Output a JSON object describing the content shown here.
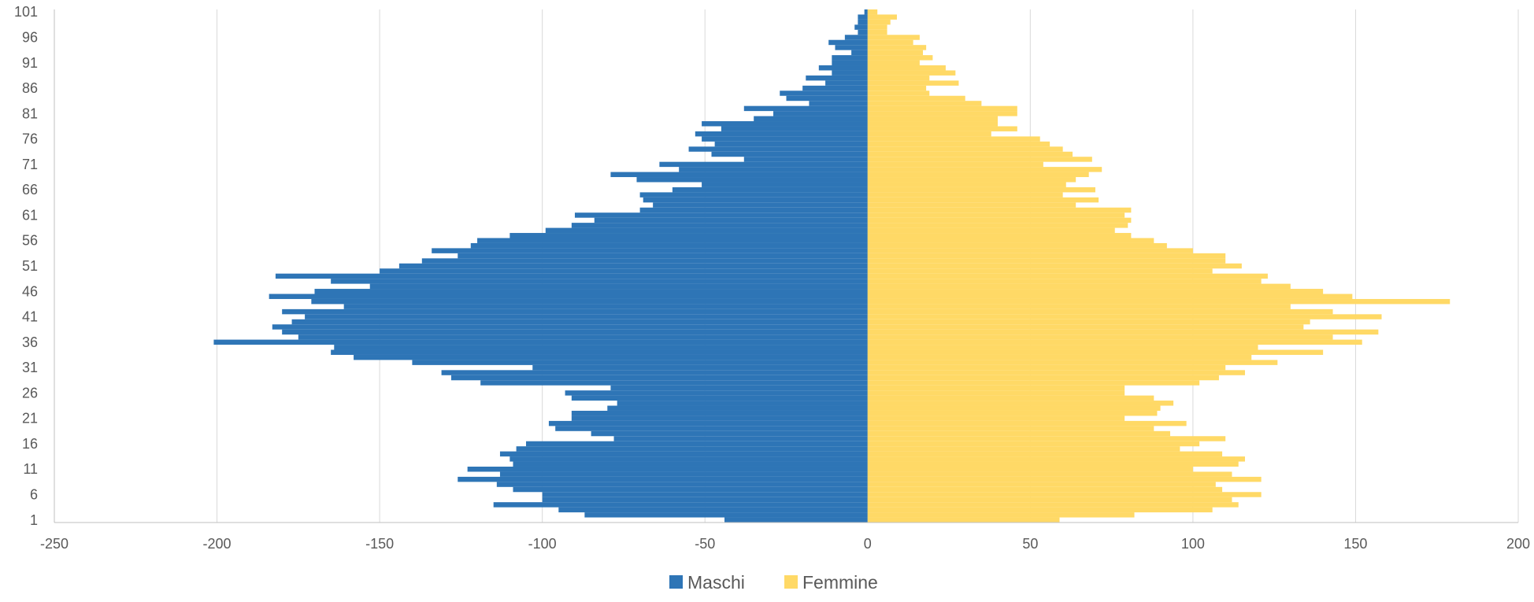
{
  "chart_data": {
    "type": "bar",
    "orientation": "horizontal",
    "title": "",
    "xlabel": "",
    "ylabel": "",
    "xlim": [
      -250,
      200
    ],
    "x_ticks": [
      -250,
      -200,
      -150,
      -100,
      -50,
      0,
      50,
      100,
      150,
      200
    ],
    "x_tick_labels": [
      "-250",
      "-200",
      "-150",
      "-100",
      "-50",
      "0",
      "50",
      "100",
      "150",
      "200"
    ],
    "y_tick_labels": [
      "1",
      "6",
      "11",
      "16",
      "21",
      "26",
      "31",
      "36",
      "41",
      "46",
      "51",
      "56",
      "61",
      "66",
      "71",
      "76",
      "81",
      "86",
      "91",
      "96",
      "101"
    ],
    "grid": "vertical",
    "legend_position": "bottom",
    "categories": [
      1,
      2,
      3,
      4,
      5,
      6,
      7,
      8,
      9,
      10,
      11,
      12,
      13,
      14,
      15,
      16,
      17,
      18,
      19,
      20,
      21,
      22,
      23,
      24,
      25,
      26,
      27,
      28,
      29,
      30,
      31,
      32,
      33,
      34,
      35,
      36,
      37,
      38,
      39,
      40,
      41,
      42,
      43,
      44,
      45,
      46,
      47,
      48,
      49,
      50,
      51,
      52,
      53,
      54,
      55,
      56,
      57,
      58,
      59,
      60,
      61,
      62,
      63,
      64,
      65,
      66,
      67,
      68,
      69,
      70,
      71,
      72,
      73,
      74,
      75,
      76,
      77,
      78,
      79,
      80,
      81,
      82,
      83,
      84,
      85,
      86,
      87,
      88,
      89,
      90,
      91,
      92,
      93,
      94,
      95,
      96,
      97,
      98,
      99,
      100,
      101
    ],
    "series": [
      {
        "name": "Maschi",
        "color": "#2E75B6",
        "values": [
          -44,
          -87,
          -95,
          -115,
          -100,
          -100,
          -109,
          -114,
          -126,
          -113,
          -123,
          -109,
          -110,
          -113,
          -108,
          -105,
          -78,
          -85,
          -96,
          -98,
          -91,
          -91,
          -80,
          -77,
          -91,
          -93,
          -79,
          -119,
          -128,
          -131,
          -103,
          -140,
          -158,
          -165,
          -164,
          -201,
          -175,
          -180,
          -183,
          -177,
          -173,
          -180,
          -161,
          -171,
          -184,
          -170,
          -153,
          -165,
          -182,
          -150,
          -144,
          -137,
          -126,
          -134,
          -122,
          -120,
          -110,
          -99,
          -91,
          -84,
          -90,
          -70,
          -66,
          -69,
          -70,
          -60,
          -51,
          -71,
          -79,
          -58,
          -64,
          -38,
          -48,
          -55,
          -47,
          -51,
          -53,
          -45,
          -51,
          -35,
          -29,
          -38,
          -18,
          -25,
          -27,
          -20,
          -13,
          -19,
          -11,
          -15,
          -11,
          -11,
          -5,
          -10,
          -12,
          -7,
          -3,
          -4,
          -3,
          -3,
          -1
        ]
      },
      {
        "name": "Femmine",
        "color": "#FFD966",
        "values": [
          59,
          82,
          106,
          114,
          112,
          121,
          109,
          107,
          121,
          112,
          100,
          114,
          116,
          109,
          96,
          102,
          110,
          93,
          88,
          98,
          79,
          89,
          90,
          94,
          88,
          79,
          79,
          102,
          108,
          116,
          110,
          126,
          118,
          140,
          120,
          152,
          143,
          157,
          134,
          136,
          158,
          143,
          130,
          179,
          149,
          140,
          130,
          121,
          123,
          106,
          115,
          110,
          110,
          100,
          92,
          88,
          81,
          76,
          80,
          81,
          79,
          81,
          64,
          71,
          60,
          70,
          61,
          64,
          68,
          72,
          54,
          69,
          63,
          60,
          56,
          53,
          38,
          46,
          40,
          40,
          46,
          46,
          35,
          30,
          19,
          18,
          28,
          19,
          27,
          24,
          16,
          20,
          17,
          18,
          14,
          16,
          6,
          6,
          7,
          9,
          3
        ]
      }
    ]
  }
}
